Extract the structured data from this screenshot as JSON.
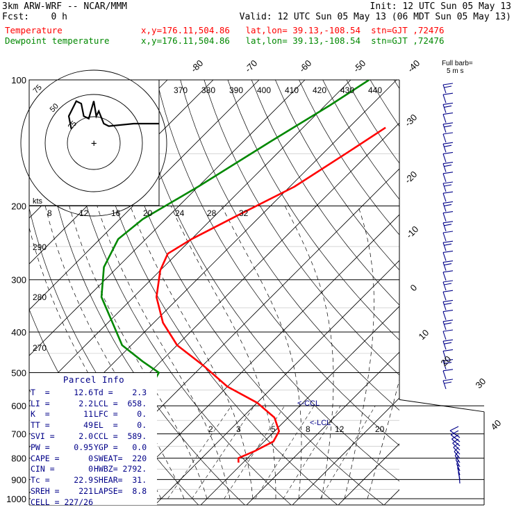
{
  "header": {
    "model": "3km ARW-WRF -- NCAR/MMM",
    "init": "Init: 12 UTC Sun 05 May 13",
    "fcst": "Fcst:    0 h",
    "valid": "Valid: 12 UTC Sun 05 May 13 (06 MDT Sun 05 May 13)",
    "temp_label": "Temperature",
    "temp_info": "x,y=176.11,504.86   lat,lon= 39.13,-108.54  stn=GJT ,72476",
    "dew_label": "Dewpoint temperature",
    "dew_info": "x,y=176.11,504.86   lat,lon= 39.13,-108.54  stn=GJT ,72476"
  },
  "chart_data": {
    "type": "line",
    "pressure_levels": [
      100,
      200,
      300,
      400,
      500,
      600,
      700,
      800,
      900,
      1000
    ],
    "pressure_labels": [
      "100",
      "200",
      "300",
      "400",
      "500",
      "600",
      "700",
      "800",
      "900",
      "1000"
    ],
    "isotherm_labels_top": [
      "-80",
      "-70",
      "-60",
      "-50",
      "-40"
    ],
    "isotherm_labels_right": [
      "-30",
      "-20",
      "-10",
      "0",
      "10",
      "20",
      "30",
      "40"
    ],
    "theta_labels": [
      "370",
      "380",
      "390",
      "400",
      "410",
      "420",
      "430",
      "440"
    ],
    "theta_left_labels": [
      "290",
      "280",
      "270"
    ],
    "mixing_ratio_labels": [
      "2",
      "3",
      "5",
      "8",
      "12",
      "20"
    ],
    "hodo_axis_labels": [
      "8",
      "12",
      "16",
      "20",
      "24",
      "28",
      "32"
    ],
    "hodo_ring_labels": [
      "75",
      "50",
      "25"
    ],
    "hodo_kts_label": "kts",
    "barb_legend": "Full barb=\n5 m s",
    "lcl_label_1": "<-CCL",
    "lcl_label_2": "<-LCL",
    "series": [
      {
        "name": "Temperature",
        "color": "#ff0000",
        "points": [
          [
            -42,
            130
          ],
          [
            -45,
            150
          ],
          [
            -49,
            180
          ],
          [
            -55,
            210
          ],
          [
            -60,
            240
          ],
          [
            -62,
            260
          ],
          [
            -60,
            285
          ],
          [
            -55,
            330
          ],
          [
            -48,
            380
          ],
          [
            -40,
            430
          ],
          [
            -30,
            480
          ],
          [
            -20,
            540
          ],
          [
            -10,
            590
          ],
          [
            -3,
            640
          ],
          [
            1,
            690
          ],
          [
            2,
            730
          ],
          [
            0,
            770
          ],
          [
            -2,
            800
          ],
          [
            -1,
            820
          ]
        ]
      },
      {
        "name": "Dewpoint temperature",
        "color": "#008800",
        "points": [
          [
            -56,
            100
          ],
          [
            -59,
            115
          ],
          [
            -64,
            140
          ],
          [
            -70,
            180
          ],
          [
            -75,
            215
          ],
          [
            -76,
            240
          ],
          [
            -73,
            280
          ],
          [
            -67,
            330
          ],
          [
            -59,
            380
          ],
          [
            -52,
            430
          ],
          [
            -44,
            470
          ],
          [
            -38,
            500
          ],
          [
            -37,
            530
          ],
          [
            -38,
            570
          ],
          [
            -40,
            630
          ],
          [
            -39,
            690
          ],
          [
            -34,
            750
          ],
          [
            -28,
            780
          ],
          [
            -25,
            800
          ],
          [
            -23,
            820
          ]
        ]
      }
    ],
    "hodograph": {
      "points": [
        [
          -9,
          3
        ],
        [
          -10,
          8
        ],
        [
          -7,
          14
        ],
        [
          -5,
          13
        ],
        [
          -4,
          8
        ],
        [
          -2,
          7
        ],
        [
          0,
          14
        ],
        [
          1,
          8
        ],
        [
          2,
          10
        ],
        [
          4,
          5
        ],
        [
          6,
          4
        ],
        [
          16,
          5
        ],
        [
          25,
          5
        ],
        [
          26,
          5
        ]
      ]
    }
  },
  "parcel_info": {
    "title": "Parcel Info",
    "rows": [
      [
        "T  =     12.6",
        "Td =    2.3"
      ],
      [
        "LI =      2.2",
        "LCL =  658."
      ],
      [
        "K  =       11",
        "LFC =    0."
      ],
      [
        "TT =       49",
        "EL  =    0."
      ],
      [
        "SVI =     2.0",
        "CCL =  589."
      ],
      [
        "PW =     0.95",
        "YGP =   0.0"
      ],
      [
        "CAPE =      0",
        "SWEAT=  220"
      ],
      [
        "CIN =       0",
        "HWBZ= 2792."
      ],
      [
        "Tc =     22.9",
        "SHEAR=  31."
      ],
      [
        "SREH =    221",
        "LAPSE=  8.8"
      ],
      [
        "CELL = 227/26",
        ""
      ]
    ]
  }
}
